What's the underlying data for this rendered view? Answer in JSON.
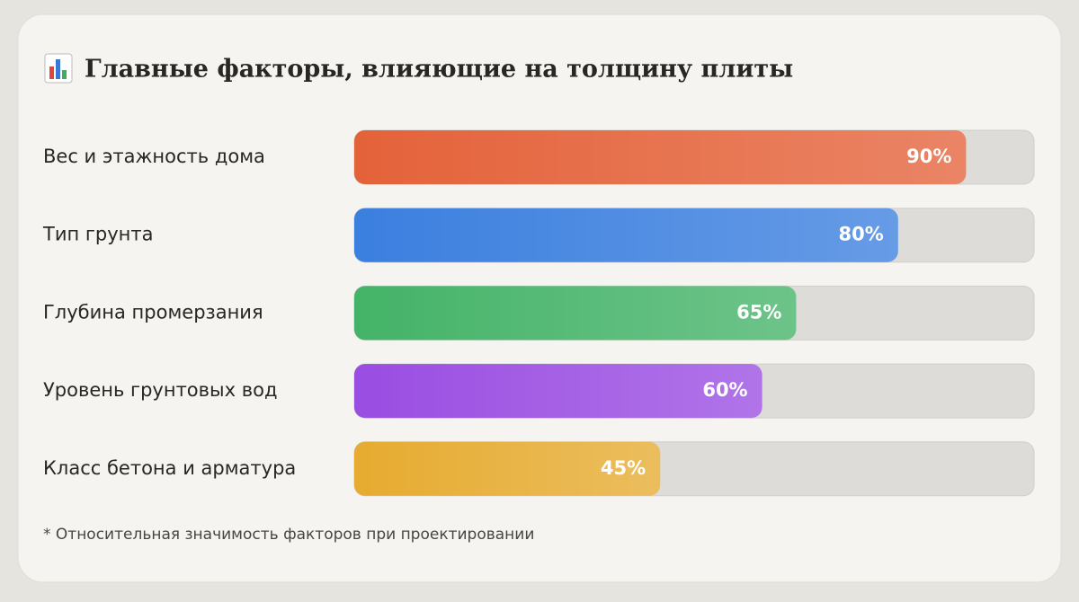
{
  "chart_data": {
    "type": "bar",
    "orientation": "horizontal",
    "title": "Главные факторы, влияющие на толщину плиты",
    "categories": [
      "Вес и этажность дома",
      "Тип грунта",
      "Глубина промерзания",
      "Уровень грунтовых вод",
      "Класс бетона и арматура"
    ],
    "values": [
      90,
      80,
      65,
      60,
      45
    ],
    "value_labels": [
      "90%",
      "80%",
      "65%",
      "60%",
      "45%"
    ],
    "colors": [
      "#e4623a",
      "#3b7fdf",
      "#44b368",
      "#9a4de2",
      "#e6ab30"
    ],
    "xlim": [
      0,
      100
    ],
    "note": "* Относительная значимость факторов при проектировании"
  }
}
